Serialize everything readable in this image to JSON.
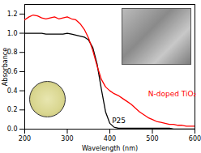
{
  "chart_data": {
    "type": "line",
    "x_label": "Wavelength (nm)",
    "y_label": "Absorbance",
    "x": [
      200,
      210,
      220,
      230,
      240,
      250,
      260,
      270,
      280,
      290,
      300,
      310,
      320,
      330,
      340,
      350,
      360,
      370,
      380,
      390,
      400,
      410,
      420,
      430,
      440,
      450,
      460,
      470,
      480,
      490,
      500,
      510,
      520,
      530,
      540,
      550,
      560,
      570,
      580,
      590,
      600
    ],
    "series": [
      {
        "name": "P25",
        "color": "#000000",
        "values": [
          1.0,
          1.0,
          1.0,
          1.0,
          1.0,
          0.99,
          0.99,
          0.99,
          0.99,
          0.99,
          1.0,
          0.99,
          0.98,
          0.97,
          0.96,
          0.93,
          0.85,
          0.68,
          0.42,
          0.18,
          0.06,
          0.02,
          0.01,
          0.01,
          0.01,
          0.01,
          0.01,
          0.01,
          0.01,
          0.01,
          0.01,
          0.01,
          0.01,
          0.01,
          0.01,
          0.0,
          0.0,
          0.0,
          0.0,
          0.0,
          0.0
        ]
      },
      {
        "name": "N-doped TiO₂",
        "color": "#ff0000",
        "values": [
          1.14,
          1.17,
          1.19,
          1.18,
          1.16,
          1.15,
          1.16,
          1.17,
          1.15,
          1.16,
          1.17,
          1.15,
          1.14,
          1.1,
          1.04,
          0.95,
          0.82,
          0.66,
          0.52,
          0.44,
          0.4,
          0.37,
          0.35,
          0.32,
          0.29,
          0.26,
          0.22,
          0.18,
          0.15,
          0.12,
          0.1,
          0.08,
          0.07,
          0.06,
          0.05,
          0.05,
          0.04,
          0.04,
          0.03,
          0.03,
          0.03
        ]
      }
    ],
    "annotations": [
      {
        "text": "N-doped TiO₂",
        "x": 490,
        "y": 0.37
      },
      {
        "text": "P25",
        "x": 405,
        "y": 0.09
      }
    ],
    "xlim": [
      200,
      600
    ],
    "xticks": [
      200,
      300,
      400,
      500,
      600
    ],
    "ylim": [
      0,
      1.3
    ],
    "yticks": [
      {
        "value": 0,
        "label": "0.0"
      },
      0.2,
      0.4,
      0.6,
      0.8,
      {
        "value": 1,
        "label": "1.0"
      },
      1.2
    ],
    "grid": false,
    "legend": "none"
  }
}
